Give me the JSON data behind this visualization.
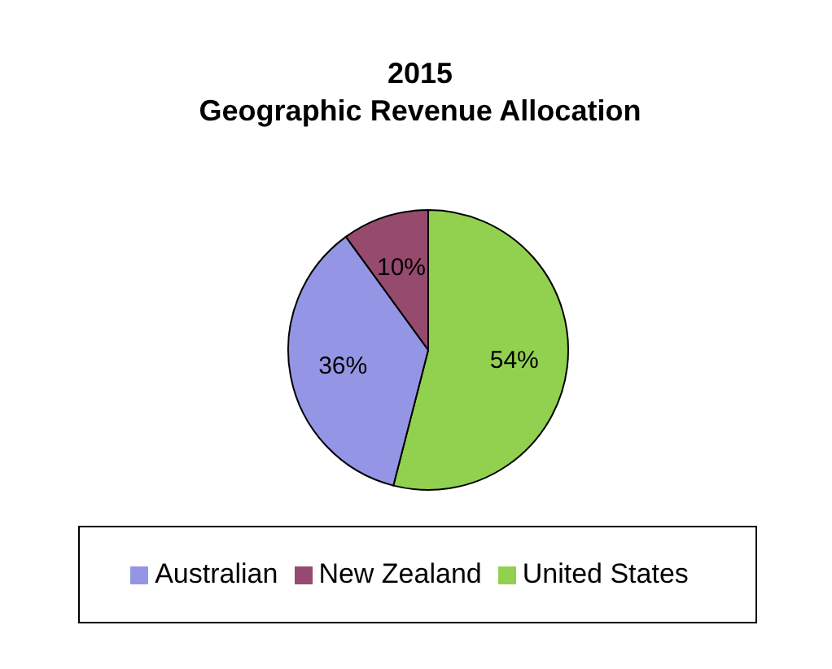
{
  "chart_data": {
    "type": "pie",
    "title": "2015",
    "subtitle": "Geographic Revenue Allocation",
    "categories": [
      "United States",
      "Australian",
      "New Zealand"
    ],
    "values": [
      54,
      36,
      10
    ],
    "colors": [
      "#92d050",
      "#9595e6",
      "#964b6e"
    ],
    "value_labels": [
      "54%",
      "36%",
      "10%"
    ],
    "legend": "bottom"
  }
}
